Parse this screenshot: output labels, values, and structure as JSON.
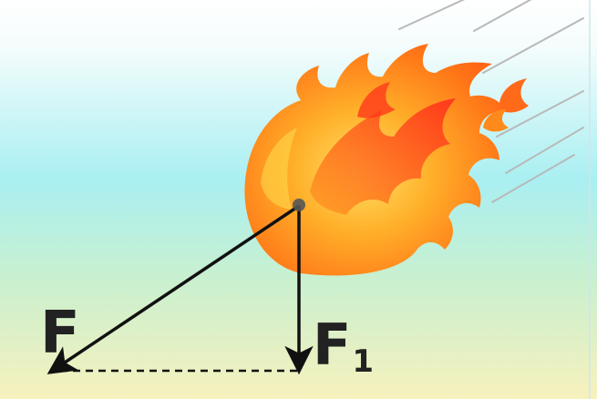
{
  "colors": {
    "sky_top": "#ffffff",
    "sky_mid": "#a8eff2",
    "sky_bottom": "#f6f2bf",
    "flame_outer": "#ff8a1c",
    "flame_inner": "#ff3a1a",
    "flame_core": "#ffd84a",
    "arrow": "#111111",
    "center_point": "#555555",
    "motion_streak": "#b9b9b9"
  },
  "labels": {
    "force": "F",
    "component_main": "F",
    "component_subscript": "1"
  },
  "icons": {
    "fireball": "fireball-icon",
    "motion_lines": "motion-streaks"
  }
}
